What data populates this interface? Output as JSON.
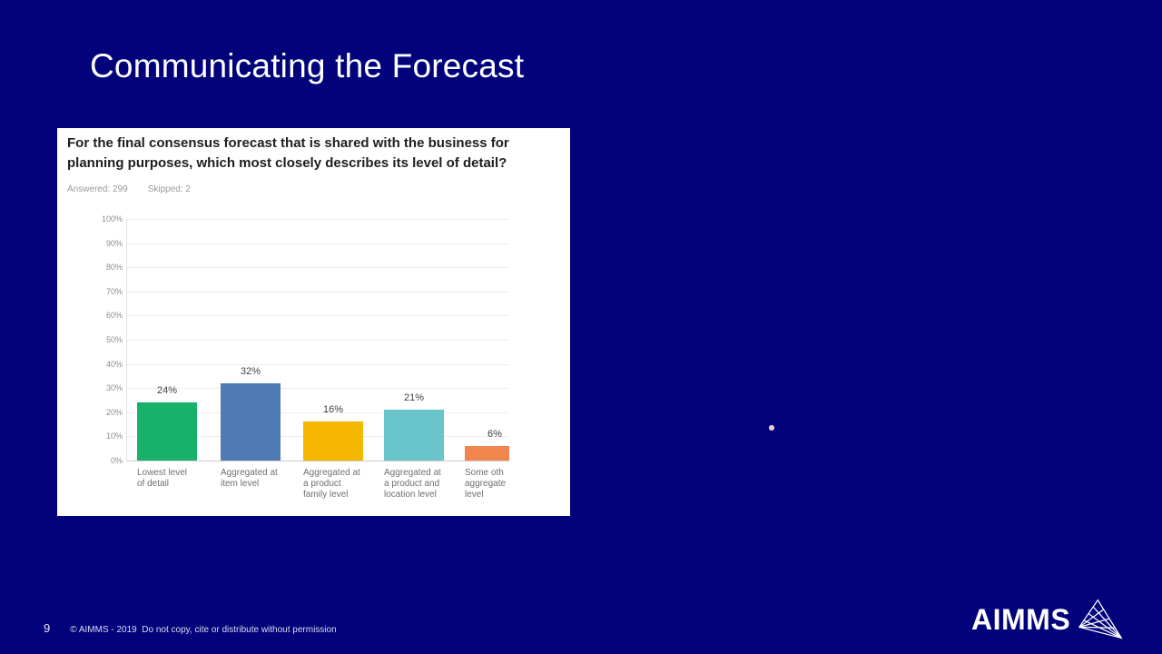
{
  "slide": {
    "title": "Communicating the Forecast",
    "page_number": "9",
    "copyright": "© AIMMS - 2019  Do not copy, cite or distribute without permission",
    "background_color": "#02027b",
    "logo_text": "AIMMS"
  },
  "panel": {
    "question": "For the final consensus forecast that is shared with the business for planning purposes, which most closely describes its level of detail?",
    "answered_label": "Answered: 299",
    "skipped_label": "Skipped: 2"
  },
  "chart_data": {
    "type": "bar",
    "title": "For the final consensus forecast that is shared with the business for planning purposes, which most closely describes its level of detail?",
    "categories": [
      "Lowest level\nof detail",
      "Aggregated at\nitem level",
      "Aggregated at\na product\nfamily level",
      "Aggregated at\na product and\nlocation level",
      "Some oth\naggregate\nlevel"
    ],
    "values": [
      24,
      32,
      16,
      21,
      6
    ],
    "value_labels": [
      "24%",
      "32%",
      "16%",
      "21%",
      "6%"
    ],
    "colors": [
      "#17b169",
      "#4f7ab3",
      "#f5b700",
      "#69c5c9",
      "#f0854d"
    ],
    "yticks": [
      "100%",
      "90%",
      "80%",
      "70%",
      "60%",
      "50%",
      "40%",
      "30%",
      "20%",
      "10%",
      "0%"
    ],
    "ylim": [
      0,
      100
    ],
    "ylabel": "",
    "xlabel": "",
    "grid": "horizontal",
    "legend": "none"
  }
}
